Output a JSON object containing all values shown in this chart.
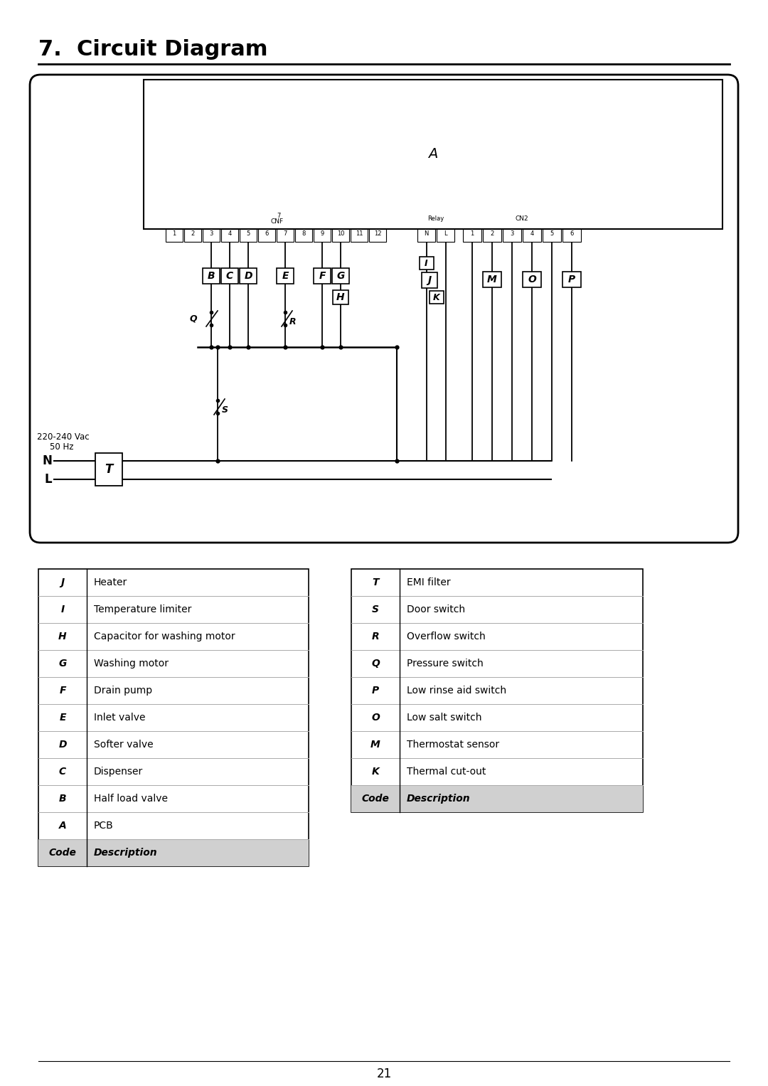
{
  "title": "7.  Circuit Diagram",
  "page_number": "21",
  "table_left_headers": [
    "Code",
    "Description"
  ],
  "table_left_rows": [
    [
      "A",
      "PCB"
    ],
    [
      "B",
      "Half load valve"
    ],
    [
      "C",
      "Dispenser"
    ],
    [
      "D",
      "Softer valve"
    ],
    [
      "E",
      "Inlet valve"
    ],
    [
      "F",
      "Drain pump"
    ],
    [
      "G",
      "Washing motor"
    ],
    [
      "H",
      "Capacitor for washing motor"
    ],
    [
      "I",
      "Temperature limiter"
    ],
    [
      "J",
      "Heater"
    ]
  ],
  "table_right_headers": [
    "Code",
    "Description"
  ],
  "table_right_rows": [
    [
      "K",
      "Thermal cut-out"
    ],
    [
      "M",
      "Thermostat sensor"
    ],
    [
      "O",
      "Low salt switch"
    ],
    [
      "P",
      "Low rinse aid switch"
    ],
    [
      "Q",
      "Pressure switch"
    ],
    [
      "R",
      "Overflow switch"
    ],
    [
      "S",
      "Door switch"
    ],
    [
      "T",
      "EMI filter"
    ]
  ],
  "bg_color": "#ffffff",
  "text_color": "#000000"
}
